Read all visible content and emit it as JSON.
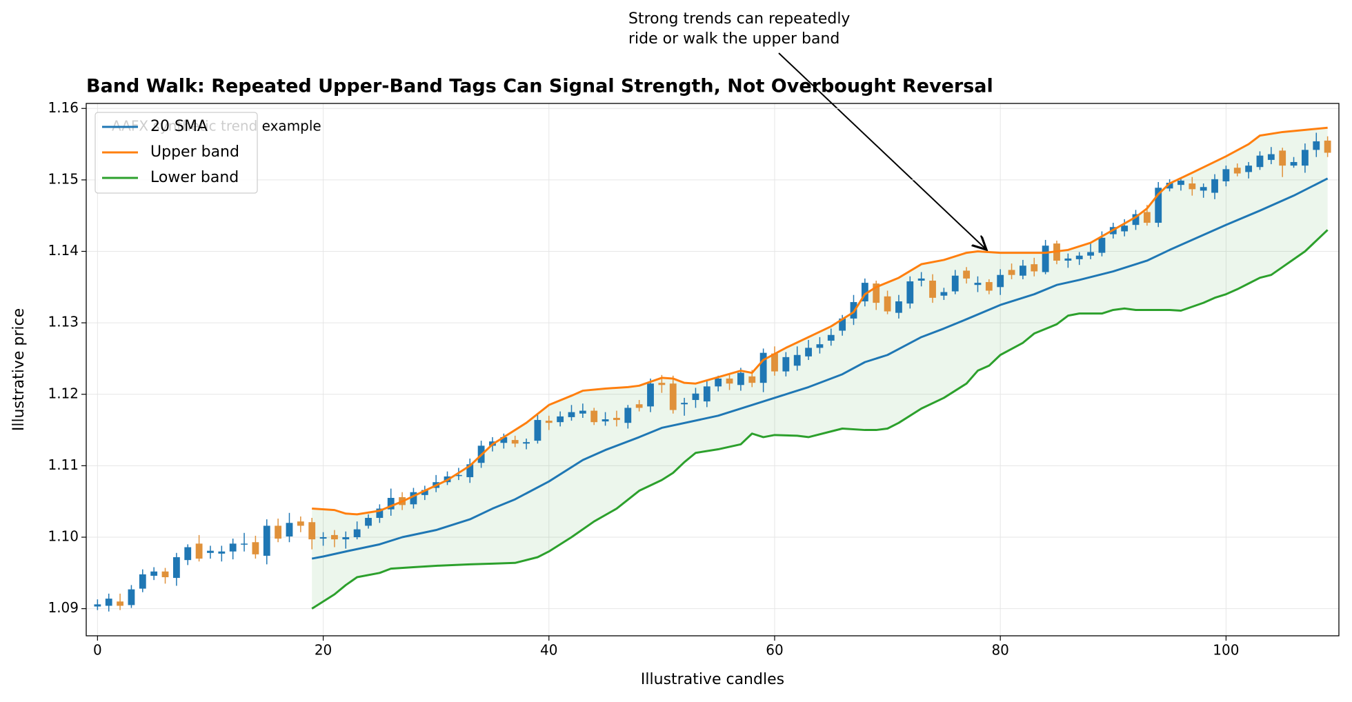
{
  "chart_data": {
    "type": "candlestick",
    "title": "Band Walk: Repeated Upper-Band Tags Can Signal Strength, Not Overbought Reversal",
    "subtitle": "AAFX synthetic trend example",
    "annotation": [
      "Strong trends can repeatedly",
      "ride or walk the upper band"
    ],
    "xlabel": "Illustrative candles",
    "ylabel": "Illustrative price",
    "xlim": [
      -1,
      110
    ],
    "ylim": [
      1.0862,
      1.1607
    ],
    "xticks": [
      0,
      20,
      40,
      60,
      80,
      100
    ],
    "yticks": [
      1.09,
      {
        "value": 1.1,
        "label": "1.10"
      },
      1.11,
      1.12,
      1.13,
      1.14,
      1.15,
      1.16
    ],
    "grid": true,
    "legend": "upper left",
    "up_color": "#1f77b4",
    "down_color": "#e0913a",
    "band_fill": "#2ca02c",
    "x": [
      0,
      1,
      2,
      3,
      4,
      5,
      6,
      7,
      8,
      9,
      10,
      11,
      12,
      13,
      14,
      15,
      16,
      17,
      18,
      19,
      20,
      21,
      22,
      23,
      24,
      25,
      26,
      27,
      28,
      29,
      30,
      31,
      32,
      33,
      34,
      35,
      36,
      37,
      38,
      39,
      40,
      41,
      42,
      43,
      44,
      45,
      46,
      47,
      48,
      49,
      50,
      51,
      52,
      53,
      54,
      55,
      56,
      57,
      58,
      59,
      60,
      61,
      62,
      63,
      64,
      65,
      66,
      67,
      68,
      69,
      70,
      71,
      72,
      73,
      74,
      75,
      76,
      77,
      78,
      79,
      80,
      81,
      82,
      83,
      84,
      85,
      86,
      87,
      88,
      89,
      90,
      91,
      92,
      93,
      94,
      95,
      96,
      97,
      98,
      99,
      100,
      101,
      102,
      103,
      104,
      105,
      106,
      107,
      108,
      109
    ],
    "open": [
      1.0903,
      1.0904,
      1.091,
      1.0905,
      1.0928,
      1.0946,
      1.0952,
      1.0943,
      1.0968,
      1.0991,
      1.0978,
      1.0977,
      1.098,
      1.099,
      1.0993,
      1.0974,
      1.1016,
      1.1001,
      1.1022,
      1.1021,
      1.0998,
      1.1003,
      1.0997,
      1.1,
      1.1016,
      1.1027,
      1.1039,
      1.1056,
      1.1046,
      1.1059,
      1.1069,
      1.1077,
      1.1087,
      1.1084,
      1.1104,
      1.1128,
      1.1132,
      1.1136,
      1.1131,
      1.1135,
      1.1163,
      1.1161,
      1.1168,
      1.1173,
      1.1177,
      1.1162,
      1.1167,
      1.116,
      1.1186,
      1.1183,
      1.1216,
      1.1215,
      1.1186,
      1.1192,
      1.119,
      1.1211,
      1.1222,
      1.1213,
      1.1225,
      1.1216,
      1.1257,
      1.1232,
      1.124,
      1.1253,
      1.1265,
      1.1275,
      1.1289,
      1.1306,
      1.133,
      1.1355,
      1.1337,
      1.1314,
      1.1327,
      1.1359,
      1.1359,
      1.1338,
      1.1344,
      1.1373,
      1.1353,
      1.1357,
      1.135,
      1.1374,
      1.1366,
      1.1382,
      1.1371,
      1.1411,
      1.1387,
      1.1389,
      1.1394,
      1.1398,
      1.1424,
      1.1428,
      1.1437,
      1.1455,
      1.144,
      1.1488,
      1.1493,
      1.1495,
      1.1485,
      1.1482,
      1.1498,
      1.1517,
      1.1511,
      1.1518,
      1.1528,
      1.1541,
      1.152,
      1.152,
      1.1542,
      1.1555
    ],
    "high": [
      1.0913,
      1.0921,
      1.0921,
      1.0933,
      1.0955,
      1.0958,
      1.0957,
      1.0978,
      1.099,
      1.1003,
      1.0988,
      1.0988,
      1.0998,
      1.1006,
      1.1002,
      1.1025,
      1.1026,
      1.1034,
      1.1029,
      1.1027,
      1.1007,
      1.101,
      1.1008,
      1.1022,
      1.1032,
      1.1046,
      1.1068,
      1.1063,
      1.1069,
      1.1072,
      1.1087,
      1.1092,
      1.1097,
      1.111,
      1.1135,
      1.114,
      1.1145,
      1.1142,
      1.1138,
      1.1171,
      1.117,
      1.1176,
      1.1185,
      1.1187,
      1.1181,
      1.1175,
      1.1177,
      1.1185,
      1.1192,
      1.1222,
      1.1227,
      1.1226,
      1.1195,
      1.1209,
      1.1219,
      1.1226,
      1.1229,
      1.1237,
      1.1234,
      1.1264,
      1.1267,
      1.1259,
      1.1267,
      1.1276,
      1.128,
      1.1292,
      1.1311,
      1.1339,
      1.1362,
      1.1359,
      1.1345,
      1.1339,
      1.1365,
      1.1371,
      1.1368,
      1.1349,
      1.1374,
      1.1378,
      1.1365,
      1.1361,
      1.1375,
      1.1383,
      1.1388,
      1.1391,
      1.1416,
      1.1415,
      1.1397,
      1.1399,
      1.1411,
      1.1428,
      1.144,
      1.1445,
      1.1458,
      1.1465,
      1.1497,
      1.1501,
      1.1503,
      1.1504,
      1.1495,
      1.1508,
      1.152,
      1.1523,
      1.1525,
      1.154,
      1.1546,
      1.1545,
      1.1532,
      1.1551,
      1.1566,
      1.1561
    ],
    "low": [
      1.0898,
      1.0896,
      1.0898,
      1.0901,
      1.0923,
      1.094,
      1.0935,
      1.0932,
      1.0961,
      1.0966,
      1.097,
      1.0966,
      1.0969,
      1.098,
      1.097,
      1.0962,
      1.0993,
      1.0993,
      1.1007,
      1.0983,
      1.0988,
      1.0986,
      1.0984,
      1.0997,
      1.1012,
      1.102,
      1.103,
      1.1038,
      1.104,
      1.1052,
      1.1063,
      1.1073,
      1.108,
      1.1076,
      1.1097,
      1.112,
      1.1124,
      1.1126,
      1.1123,
      1.1131,
      1.115,
      1.1155,
      1.1163,
      1.1167,
      1.1157,
      1.1156,
      1.1155,
      1.1152,
      1.1176,
      1.1175,
      1.1202,
      1.1173,
      1.117,
      1.1181,
      1.1182,
      1.1204,
      1.1206,
      1.1205,
      1.121,
      1.1203,
      1.1226,
      1.1225,
      1.1233,
      1.1248,
      1.1257,
      1.1268,
      1.1282,
      1.1297,
      1.1323,
      1.1318,
      1.1312,
      1.1306,
      1.132,
      1.1351,
      1.1328,
      1.1332,
      1.134,
      1.1355,
      1.1343,
      1.134,
      1.1339,
      1.1361,
      1.1361,
      1.1365,
      1.1368,
      1.1382,
      1.1377,
      1.1381,
      1.1389,
      1.1393,
      1.1418,
      1.1421,
      1.143,
      1.1436,
      1.1434,
      1.1484,
      1.1485,
      1.1478,
      1.1475,
      1.1473,
      1.1491,
      1.1505,
      1.1502,
      1.1514,
      1.1522,
      1.1504,
      1.1517,
      1.151,
      1.1532,
      1.1532
    ],
    "close": [
      1.0906,
      1.0914,
      1.0904,
      1.0927,
      1.0948,
      1.0952,
      1.0944,
      1.0972,
      1.0986,
      1.097,
      1.0981,
      1.098,
      1.0991,
      1.0991,
      1.0976,
      1.1016,
      1.0998,
      1.102,
      1.1016,
      1.0997,
      1.1,
      1.0997,
      1.1,
      1.1011,
      1.1027,
      1.104,
      1.1055,
      1.1045,
      1.1063,
      1.1066,
      1.1077,
      1.1085,
      1.1087,
      1.1102,
      1.1128,
      1.1134,
      1.114,
      1.1131,
      1.1133,
      1.1164,
      1.116,
      1.1169,
      1.1175,
      1.1177,
      1.1161,
      1.1165,
      1.1164,
      1.1181,
      1.1181,
      1.1215,
      1.1213,
      1.1178,
      1.1188,
      1.1201,
      1.1211,
      1.1222,
      1.1215,
      1.123,
      1.1216,
      1.1258,
      1.1232,
      1.1252,
      1.1255,
      1.1265,
      1.127,
      1.1283,
      1.1306,
      1.1329,
      1.1356,
      1.1328,
      1.1316,
      1.133,
      1.1358,
      1.1362,
      1.1335,
      1.1343,
      1.1366,
      1.1362,
      1.1356,
      1.1345,
      1.1367,
      1.1367,
      1.138,
      1.1372,
      1.1408,
      1.1387,
      1.139,
      1.1394,
      1.1399,
      1.1419,
      1.1434,
      1.1436,
      1.1452,
      1.144,
      1.1489,
      1.1496,
      1.1499,
      1.1487,
      1.149,
      1.1501,
      1.1515,
      1.1509,
      1.152,
      1.1534,
      1.1536,
      1.152,
      1.1525,
      1.1542,
      1.1554,
      1.1538
    ],
    "series": [
      {
        "name": "20 SMA",
        "color": "#1f77b4",
        "x": [
          19,
          20,
          22,
          25,
          27,
          30,
          33,
          35,
          37,
          40,
          43,
          45,
          48,
          50,
          55,
          58,
          60,
          63,
          66,
          68,
          70,
          73,
          75,
          77,
          80,
          83,
          85,
          87,
          90,
          93,
          95,
          100,
          103,
          106,
          109
        ],
        "values": [
          1.097,
          1.0973,
          1.098,
          1.099,
          1.1,
          1.101,
          1.1025,
          1.104,
          1.1053,
          1.1078,
          1.1108,
          1.1122,
          1.114,
          1.1153,
          1.117,
          1.1185,
          1.1195,
          1.121,
          1.1228,
          1.1245,
          1.1255,
          1.128,
          1.1292,
          1.1305,
          1.1325,
          1.134,
          1.1353,
          1.136,
          1.1372,
          1.1387,
          1.1402,
          1.1437,
          1.1457,
          1.1478,
          1.1502
        ]
      },
      {
        "name": "Upper band",
        "color": "#ff7f0e",
        "x": [
          19,
          21,
          22,
          23,
          25,
          27,
          29,
          31,
          33,
          35,
          37,
          38,
          40,
          42,
          43,
          45,
          47,
          48,
          50,
          51,
          52,
          53,
          55,
          57,
          58,
          59,
          61,
          63,
          65,
          67,
          68,
          69,
          71,
          73,
          75,
          77,
          78,
          80,
          82,
          84,
          86,
          88,
          90,
          92,
          93,
          94,
          95,
          97,
          100,
          102,
          103,
          105,
          107,
          109
        ],
        "values": [
          1.104,
          1.1038,
          1.1033,
          1.1032,
          1.1037,
          1.105,
          1.1065,
          1.108,
          1.11,
          1.113,
          1.115,
          1.116,
          1.1185,
          1.1198,
          1.1205,
          1.1208,
          1.121,
          1.1212,
          1.1223,
          1.1222,
          1.1216,
          1.1215,
          1.1224,
          1.1233,
          1.123,
          1.1248,
          1.1265,
          1.128,
          1.1295,
          1.1315,
          1.134,
          1.135,
          1.1363,
          1.1382,
          1.1388,
          1.1398,
          1.14,
          1.1398,
          1.1398,
          1.1398,
          1.1402,
          1.1412,
          1.143,
          1.1448,
          1.146,
          1.148,
          1.1495,
          1.151,
          1.1533,
          1.155,
          1.1562,
          1.1567,
          1.157,
          1.1573
        ]
      },
      {
        "name": "Lower band",
        "color": "#2ca02c",
        "x": [
          19,
          21,
          22,
          23,
          25,
          26,
          28,
          30,
          33,
          35,
          37,
          39,
          40,
          42,
          44,
          46,
          48,
          50,
          51,
          52,
          53,
          55,
          57,
          58,
          59,
          60,
          62,
          63,
          65,
          66,
          68,
          69,
          70,
          71,
          73,
          75,
          77,
          78,
          79,
          80,
          82,
          83,
          85,
          86,
          87,
          89,
          90,
          91,
          92,
          95,
          96,
          98,
          99,
          100,
          101,
          102,
          103,
          104,
          105,
          107,
          109
        ],
        "values": [
          1.09,
          1.092,
          1.0933,
          1.0944,
          1.095,
          1.0956,
          1.0958,
          1.096,
          1.0962,
          1.0963,
          1.0964,
          1.0972,
          1.098,
          1.1,
          1.1022,
          1.104,
          1.1065,
          1.108,
          1.109,
          1.1105,
          1.1118,
          1.1123,
          1.113,
          1.1145,
          1.114,
          1.1143,
          1.1142,
          1.114,
          1.1148,
          1.1152,
          1.115,
          1.115,
          1.1152,
          1.116,
          1.118,
          1.1195,
          1.1215,
          1.1233,
          1.124,
          1.1255,
          1.1272,
          1.1285,
          1.1298,
          1.131,
          1.1313,
          1.1313,
          1.1318,
          1.132,
          1.1318,
          1.1318,
          1.1317,
          1.1328,
          1.1335,
          1.134,
          1.1347,
          1.1355,
          1.1363,
          1.1367,
          1.1378,
          1.14,
          1.143
        ]
      }
    ]
  }
}
